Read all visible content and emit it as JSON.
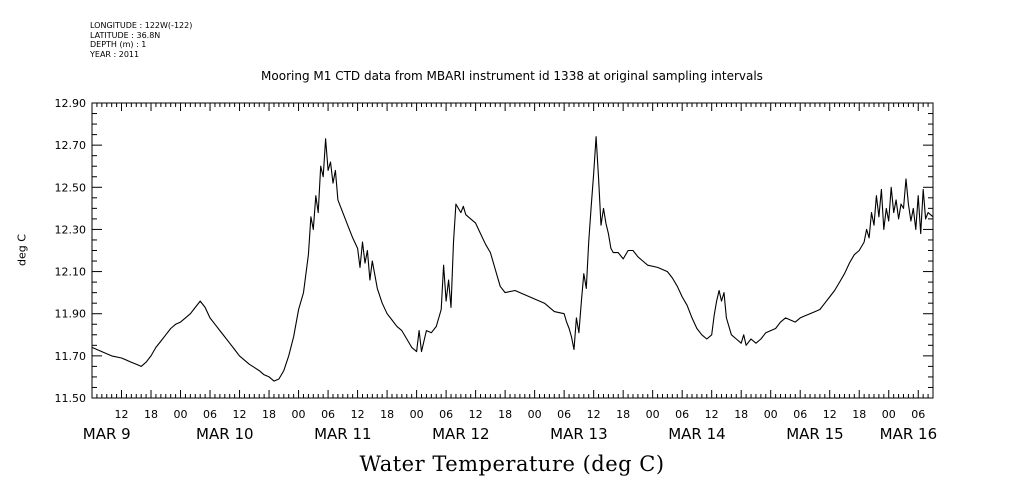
{
  "metadata": {
    "longitude": "LONGITUDE : 122W(-122)",
    "latitude": "LATITUDE : 36.8N",
    "depth": "DEPTH (m) : 1",
    "year": "YEAR : 2011"
  },
  "chart_data": {
    "type": "line",
    "title": "Mooring M1 CTD data from MBARI instrument id 1338 at original sampling intervals",
    "xlabel": "Water Temperature (deg C)",
    "ylabel": "deg C",
    "ylim": [
      11.5,
      12.9
    ],
    "xlim_hours": [
      0,
      171
    ],
    "yticks": [
      "11.50",
      "11.70",
      "11.90",
      "12.10",
      "12.30",
      "12.50",
      "12.70",
      "12.90"
    ],
    "xticks": [
      {
        "h": 6,
        "label": "12"
      },
      {
        "h": 12,
        "label": "18"
      },
      {
        "h": 18,
        "label": "00"
      },
      {
        "h": 24,
        "label": "06"
      },
      {
        "h": 30,
        "label": "12"
      },
      {
        "h": 36,
        "label": "18"
      },
      {
        "h": 42,
        "label": "00"
      },
      {
        "h": 48,
        "label": "06"
      },
      {
        "h": 54,
        "label": "12"
      },
      {
        "h": 60,
        "label": "18"
      },
      {
        "h": 66,
        "label": "00"
      },
      {
        "h": 72,
        "label": "06"
      },
      {
        "h": 78,
        "label": "12"
      },
      {
        "h": 84,
        "label": "18"
      },
      {
        "h": 90,
        "label": "00"
      },
      {
        "h": 96,
        "label": "06"
      },
      {
        "h": 102,
        "label": "12"
      },
      {
        "h": 108,
        "label": "18"
      },
      {
        "h": 114,
        "label": "00"
      },
      {
        "h": 120,
        "label": "06"
      },
      {
        "h": 126,
        "label": "12"
      },
      {
        "h": 132,
        "label": "18"
      },
      {
        "h": 138,
        "label": "00"
      },
      {
        "h": 144,
        "label": "06"
      },
      {
        "h": 150,
        "label": "12"
      },
      {
        "h": 156,
        "label": "18"
      },
      {
        "h": 162,
        "label": "00"
      },
      {
        "h": 168,
        "label": "06"
      }
    ],
    "day_labels": [
      {
        "h": 3,
        "label": "MAR  9"
      },
      {
        "h": 27,
        "label": "MAR 10"
      },
      {
        "h": 51,
        "label": "MAR 11"
      },
      {
        "h": 75,
        "label": "MAR 12"
      },
      {
        "h": 99,
        "label": "MAR 13"
      },
      {
        "h": 123,
        "label": "MAR 14"
      },
      {
        "h": 147,
        "label": "MAR 15"
      },
      {
        "h": 166,
        "label": "MAR 16"
      }
    ],
    "series": [
      {
        "values": [
          [
            0,
            11.74
          ],
          [
            1,
            11.73
          ],
          [
            2,
            11.72
          ],
          [
            4,
            11.7
          ],
          [
            6,
            11.69
          ],
          [
            8,
            11.67
          ],
          [
            9,
            11.66
          ],
          [
            10,
            11.65
          ],
          [
            11,
            11.67
          ],
          [
            12,
            11.7
          ],
          [
            13,
            11.74
          ],
          [
            14,
            11.77
          ],
          [
            15,
            11.8
          ],
          [
            16,
            11.83
          ],
          [
            17,
            11.85
          ],
          [
            18,
            11.86
          ],
          [
            19,
            11.88
          ],
          [
            20,
            11.9
          ],
          [
            21,
            11.93
          ],
          [
            22,
            11.96
          ],
          [
            23,
            11.93
          ],
          [
            24,
            11.88
          ],
          [
            25,
            11.85
          ],
          [
            26,
            11.82
          ],
          [
            27,
            11.79
          ],
          [
            28,
            11.76
          ],
          [
            29,
            11.73
          ],
          [
            30,
            11.7
          ],
          [
            32,
            11.66
          ],
          [
            34,
            11.63
          ],
          [
            35,
            11.61
          ],
          [
            36,
            11.6
          ],
          [
            37,
            11.58
          ],
          [
            38,
            11.59
          ],
          [
            39,
            11.63
          ],
          [
            40,
            11.7
          ],
          [
            41,
            11.79
          ],
          [
            42,
            11.92
          ],
          [
            43,
            12.0
          ],
          [
            44,
            12.18
          ],
          [
            44.5,
            12.36
          ],
          [
            45,
            12.3
          ],
          [
            45.5,
            12.46
          ],
          [
            46,
            12.38
          ],
          [
            46.5,
            12.6
          ],
          [
            47,
            12.55
          ],
          [
            47.5,
            12.73
          ],
          [
            48,
            12.58
          ],
          [
            48.5,
            12.62
          ],
          [
            49,
            12.52
          ],
          [
            49.5,
            12.58
          ],
          [
            50,
            12.44
          ],
          [
            51,
            12.38
          ],
          [
            52,
            12.32
          ],
          [
            53,
            12.26
          ],
          [
            54,
            12.21
          ],
          [
            54.5,
            12.12
          ],
          [
            55,
            12.24
          ],
          [
            55.5,
            12.14
          ],
          [
            56,
            12.2
          ],
          [
            56.5,
            12.06
          ],
          [
            57,
            12.15
          ],
          [
            58,
            12.02
          ],
          [
            59,
            11.95
          ],
          [
            60,
            11.9
          ],
          [
            61,
            11.87
          ],
          [
            62,
            11.84
          ],
          [
            63,
            11.82
          ],
          [
            64,
            11.78
          ],
          [
            65,
            11.74
          ],
          [
            66,
            11.72
          ],
          [
            66.5,
            11.82
          ],
          [
            67,
            11.72
          ],
          [
            68,
            11.82
          ],
          [
            69,
            11.81
          ],
          [
            70,
            11.84
          ],
          [
            71,
            11.92
          ],
          [
            71.5,
            12.13
          ],
          [
            72,
            11.96
          ],
          [
            72.5,
            12.06
          ],
          [
            73,
            11.93
          ],
          [
            73.5,
            12.24
          ],
          [
            74,
            12.42
          ],
          [
            75,
            12.38
          ],
          [
            75.5,
            12.41
          ],
          [
            76,
            12.37
          ],
          [
            77,
            12.35
          ],
          [
            78,
            12.33
          ],
          [
            79,
            12.28
          ],
          [
            80,
            12.23
          ],
          [
            81,
            12.19
          ],
          [
            82,
            12.11
          ],
          [
            83,
            12.03
          ],
          [
            84,
            12.0
          ],
          [
            86,
            12.01
          ],
          [
            88,
            11.99
          ],
          [
            90,
            11.97
          ],
          [
            92,
            11.95
          ],
          [
            94,
            11.91
          ],
          [
            96,
            11.9
          ],
          [
            96.5,
            11.86
          ],
          [
            97,
            11.83
          ],
          [
            97.5,
            11.79
          ],
          [
            98,
            11.73
          ],
          [
            98.5,
            11.88
          ],
          [
            99,
            11.81
          ],
          [
            99.5,
            11.96
          ],
          [
            100,
            12.09
          ],
          [
            100.5,
            12.02
          ],
          [
            101,
            12.24
          ],
          [
            101.5,
            12.41
          ],
          [
            102,
            12.56
          ],
          [
            102.5,
            12.74
          ],
          [
            103,
            12.54
          ],
          [
            103.5,
            12.32
          ],
          [
            104,
            12.4
          ],
          [
            104.5,
            12.33
          ],
          [
            105,
            12.28
          ],
          [
            105.5,
            12.21
          ],
          [
            106,
            12.19
          ],
          [
            107,
            12.19
          ],
          [
            108,
            12.16
          ],
          [
            109,
            12.2
          ],
          [
            110,
            12.2
          ],
          [
            111,
            12.17
          ],
          [
            112,
            12.15
          ],
          [
            113,
            12.13
          ],
          [
            115,
            12.12
          ],
          [
            117,
            12.1
          ],
          [
            118,
            12.07
          ],
          [
            119,
            12.03
          ],
          [
            120,
            11.98
          ],
          [
            121,
            11.94
          ],
          [
            122,
            11.88
          ],
          [
            123,
            11.83
          ],
          [
            124,
            11.8
          ],
          [
            125,
            11.78
          ],
          [
            126,
            11.8
          ],
          [
            126.5,
            11.89
          ],
          [
            127,
            11.96
          ],
          [
            127.5,
            12.01
          ],
          [
            128,
            11.96
          ],
          [
            128.5,
            12.0
          ],
          [
            129,
            11.88
          ],
          [
            129.5,
            11.84
          ],
          [
            130,
            11.8
          ],
          [
            131,
            11.78
          ],
          [
            132,
            11.76
          ],
          [
            132.5,
            11.8
          ],
          [
            133,
            11.75
          ],
          [
            134,
            11.78
          ],
          [
            135,
            11.76
          ],
          [
            136,
            11.78
          ],
          [
            137,
            11.81
          ],
          [
            138,
            11.82
          ],
          [
            139,
            11.83
          ],
          [
            140,
            11.86
          ],
          [
            141,
            11.88
          ],
          [
            142,
            11.87
          ],
          [
            143,
            11.86
          ],
          [
            144,
            11.88
          ],
          [
            145,
            11.89
          ],
          [
            146,
            11.9
          ],
          [
            147,
            11.91
          ],
          [
            148,
            11.92
          ],
          [
            149,
            11.95
          ],
          [
            150,
            11.98
          ],
          [
            151,
            12.01
          ],
          [
            152,
            12.05
          ],
          [
            153,
            12.09
          ],
          [
            154,
            12.14
          ],
          [
            155,
            12.18
          ],
          [
            156,
            12.2
          ],
          [
            157,
            12.24
          ],
          [
            157.5,
            12.3
          ],
          [
            158,
            12.26
          ],
          [
            158.5,
            12.38
          ],
          [
            159,
            12.32
          ],
          [
            159.5,
            12.46
          ],
          [
            160,
            12.36
          ],
          [
            160.5,
            12.49
          ],
          [
            161,
            12.3
          ],
          [
            161.5,
            12.4
          ],
          [
            162,
            12.34
          ],
          [
            162.5,
            12.5
          ],
          [
            163,
            12.38
          ],
          [
            163.5,
            12.44
          ],
          [
            164,
            12.35
          ],
          [
            164.5,
            12.42
          ],
          [
            165,
            12.4
          ],
          [
            165.5,
            12.54
          ],
          [
            166,
            12.42
          ],
          [
            166.5,
            12.34
          ],
          [
            167,
            12.4
          ],
          [
            167.5,
            12.3
          ],
          [
            168,
            12.46
          ],
          [
            168.5,
            12.28
          ],
          [
            169,
            12.49
          ],
          [
            169.5,
            12.35
          ],
          [
            170,
            12.38
          ],
          [
            171,
            12.36
          ]
        ]
      }
    ]
  }
}
